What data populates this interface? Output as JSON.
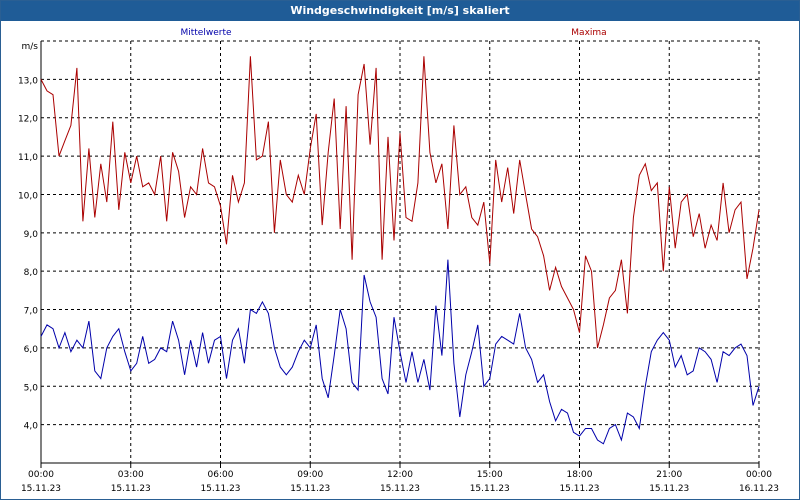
{
  "window": {
    "title": "Windgeschwindigkeit [m/s] skaliert"
  },
  "colors": {
    "titlebar": "#1f5c97",
    "mittel": "#0000aa",
    "maxima": "#aa0000",
    "grid": "#000000"
  },
  "chart_data": {
    "type": "line",
    "title": "Windgeschwindigkeit [m/s] skaliert",
    "ylabel": "m/s",
    "ylim": [
      3.0,
      14.0
    ],
    "yticks": [
      4.0,
      5.0,
      6.0,
      7.0,
      8.0,
      9.0,
      10.0,
      11.0,
      12.0,
      13.0
    ],
    "ytick_labels": [
      "4,0",
      "5,0",
      "6,0",
      "7,0",
      "8,0",
      "9,0",
      "10,0",
      "11,0",
      "12,0",
      "13,0"
    ],
    "xlim_hours": [
      0,
      24
    ],
    "xticks": [
      {
        "hour": 0,
        "time": "00:00",
        "date": "15.11.23"
      },
      {
        "hour": 3,
        "time": "03:00",
        "date": "15.11.23"
      },
      {
        "hour": 6,
        "time": "06:00",
        "date": "15.11.23"
      },
      {
        "hour": 9,
        "time": "09:00",
        "date": "15.11.23"
      },
      {
        "hour": 12,
        "time": "12:00",
        "date": "15.11.23"
      },
      {
        "hour": 15,
        "time": "15:00",
        "date": "15.11.23"
      },
      {
        "hour": 18,
        "time": "18:00",
        "date": "15.11.23"
      },
      {
        "hour": 21,
        "time": "21:00",
        "date": "15.11.23"
      },
      {
        "hour": 24,
        "time": "00:00",
        "date": "16.11.23"
      }
    ],
    "grid": true,
    "legend": "top",
    "series": [
      {
        "name": "Mittelwerte",
        "color": "#0000aa",
        "x": [
          0.0,
          0.2,
          0.4,
          0.6,
          0.8,
          1.0,
          1.2,
          1.4,
          1.6,
          1.8,
          2.0,
          2.2,
          2.4,
          2.6,
          2.8,
          3.0,
          3.2,
          3.4,
          3.6,
          3.8,
          4.0,
          4.2,
          4.4,
          4.6,
          4.8,
          5.0,
          5.2,
          5.4,
          5.6,
          5.8,
          6.0,
          6.2,
          6.4,
          6.6,
          6.8,
          7.0,
          7.2,
          7.4,
          7.6,
          7.8,
          8.0,
          8.2,
          8.4,
          8.6,
          8.8,
          9.0,
          9.2,
          9.4,
          9.6,
          9.8,
          10.0,
          10.2,
          10.4,
          10.6,
          10.8,
          11.0,
          11.2,
          11.4,
          11.6,
          11.8,
          12.0,
          12.2,
          12.4,
          12.6,
          12.8,
          13.0,
          13.2,
          13.4,
          13.6,
          13.8,
          14.0,
          14.2,
          14.4,
          14.6,
          14.8,
          15.0,
          15.2,
          15.4,
          15.6,
          15.8,
          16.0,
          16.2,
          16.4,
          16.6,
          16.8,
          17.0,
          17.2,
          17.4,
          17.6,
          17.8,
          18.0,
          18.2,
          18.4,
          18.6,
          18.8,
          19.0,
          19.2,
          19.4,
          19.6,
          19.8,
          20.0,
          20.2,
          20.4,
          20.6,
          20.8,
          21.0,
          21.2,
          21.4,
          21.6,
          21.8,
          22.0,
          22.2,
          22.4,
          22.6,
          22.8,
          23.0,
          23.2,
          23.4,
          23.6,
          23.8,
          24.0
        ],
        "values": [
          6.3,
          6.6,
          6.5,
          6.0,
          6.4,
          5.9,
          6.2,
          6.0,
          6.7,
          5.4,
          5.2,
          6.0,
          6.3,
          6.5,
          5.9,
          5.4,
          5.6,
          6.3,
          5.6,
          5.7,
          6.0,
          5.9,
          6.7,
          6.2,
          5.3,
          6.2,
          5.5,
          6.4,
          5.6,
          6.2,
          6.3,
          5.2,
          6.2,
          6.5,
          5.6,
          7.0,
          6.9,
          7.2,
          6.9,
          6.0,
          5.5,
          5.3,
          5.5,
          5.9,
          6.2,
          6.0,
          6.6,
          5.2,
          4.7,
          5.8,
          7.0,
          6.5,
          5.1,
          4.9,
          7.9,
          7.2,
          6.8,
          5.2,
          4.8,
          6.8,
          5.9,
          5.1,
          5.9,
          5.1,
          5.7,
          4.9,
          7.1,
          5.8,
          8.3,
          5.6,
          4.2,
          5.3,
          5.9,
          6.6,
          5.0,
          5.2,
          6.1,
          6.3,
          6.2,
          6.1,
          6.9,
          6.0,
          5.7,
          5.1,
          5.3,
          4.6,
          4.1,
          4.4,
          4.3,
          3.8,
          3.7,
          3.9,
          3.9,
          3.6,
          3.5,
          3.9,
          4.0,
          3.6,
          4.3,
          4.2,
          3.9,
          5.0,
          5.9,
          6.2,
          6.4,
          6.2,
          5.5,
          5.8,
          5.3,
          5.4,
          6.0,
          5.9,
          5.7,
          5.1,
          5.9,
          5.8,
          6.0,
          6.1,
          5.8,
          4.5,
          5.0
        ]
      },
      {
        "name": "Maxima",
        "color": "#aa0000",
        "x": [
          0.0,
          0.2,
          0.4,
          0.6,
          0.8,
          1.0,
          1.2,
          1.4,
          1.6,
          1.8,
          2.0,
          2.2,
          2.4,
          2.6,
          2.8,
          3.0,
          3.2,
          3.4,
          3.6,
          3.8,
          4.0,
          4.2,
          4.4,
          4.6,
          4.8,
          5.0,
          5.2,
          5.4,
          5.6,
          5.8,
          6.0,
          6.2,
          6.4,
          6.6,
          6.8,
          7.0,
          7.2,
          7.4,
          7.6,
          7.8,
          8.0,
          8.2,
          8.4,
          8.6,
          8.8,
          9.0,
          9.2,
          9.4,
          9.6,
          9.8,
          10.0,
          10.2,
          10.4,
          10.6,
          10.8,
          11.0,
          11.2,
          11.4,
          11.6,
          11.8,
          12.0,
          12.2,
          12.4,
          12.6,
          12.8,
          13.0,
          13.2,
          13.4,
          13.6,
          13.8,
          14.0,
          14.2,
          14.4,
          14.6,
          14.8,
          15.0,
          15.2,
          15.4,
          15.6,
          15.8,
          16.0,
          16.2,
          16.4,
          16.6,
          16.8,
          17.0,
          17.2,
          17.4,
          17.6,
          17.8,
          18.0,
          18.2,
          18.4,
          18.6,
          18.8,
          19.0,
          19.2,
          19.4,
          19.6,
          19.8,
          20.0,
          20.2,
          20.4,
          20.6,
          20.8,
          21.0,
          21.2,
          21.4,
          21.6,
          21.8,
          22.0,
          22.2,
          22.4,
          22.6,
          22.8,
          23.0,
          23.2,
          23.4,
          23.6,
          23.8,
          24.0
        ],
        "values": [
          13.0,
          12.7,
          12.6,
          11.0,
          11.4,
          11.8,
          13.3,
          9.3,
          11.2,
          9.4,
          10.8,
          9.8,
          11.9,
          9.6,
          11.1,
          10.3,
          11.0,
          10.2,
          10.3,
          10.0,
          11.0,
          9.3,
          11.1,
          10.6,
          9.4,
          10.2,
          10.0,
          11.2,
          10.3,
          10.2,
          9.7,
          8.7,
          10.5,
          9.8,
          10.3,
          13.6,
          10.9,
          11.0,
          11.9,
          9.0,
          10.9,
          10.0,
          9.8,
          10.5,
          10.0,
          11.2,
          12.1,
          9.2,
          11.1,
          12.5,
          9.1,
          12.3,
          8.3,
          12.6,
          13.4,
          11.3,
          13.3,
          8.3,
          11.5,
          8.8,
          11.6,
          9.4,
          9.3,
          10.3,
          13.6,
          11.1,
          10.3,
          10.8,
          9.1,
          11.8,
          10.0,
          10.2,
          9.4,
          9.2,
          9.8,
          8.2,
          10.9,
          9.8,
          10.7,
          9.5,
          10.9,
          10.0,
          9.1,
          8.9,
          8.4,
          7.5,
          8.1,
          7.6,
          7.3,
          7.0,
          6.4,
          8.4,
          8.0,
          6.0,
          6.6,
          7.3,
          7.5,
          8.3,
          6.9,
          9.4,
          10.5,
          10.8,
          10.1,
          10.3,
          8.0,
          10.2,
          8.6,
          9.8,
          10.0,
          8.9,
          9.5,
          8.6,
          9.2,
          8.8,
          10.3,
          9.0,
          9.6,
          9.8,
          7.8,
          8.6,
          9.6
        ]
      }
    ]
  }
}
